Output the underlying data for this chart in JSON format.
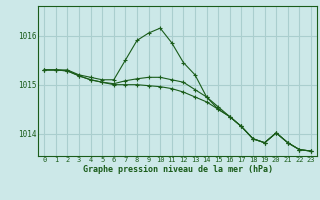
{
  "background_color": "#cce8e8",
  "grid_color": "#aacece",
  "line_color": "#1a5c1a",
  "title": "Graphe pression niveau de la mer (hPa)",
  "xlabel_hours": [
    0,
    1,
    2,
    3,
    4,
    5,
    6,
    7,
    8,
    9,
    10,
    11,
    12,
    13,
    14,
    15,
    16,
    17,
    18,
    19,
    20,
    21,
    22,
    23
  ],
  "yticks": [
    1014,
    1015,
    1016
  ],
  "ylim": [
    1013.55,
    1016.6
  ],
  "xlim": [
    -0.5,
    23.5
  ],
  "series": [
    [
      1015.3,
      1015.3,
      1015.3,
      1015.2,
      1015.15,
      1015.1,
      1015.1,
      1015.5,
      1015.9,
      1016.05,
      1016.15,
      1015.85,
      1015.45,
      1015.2,
      1014.75,
      1014.5,
      1014.35,
      1014.15,
      1013.9,
      1013.82,
      1014.02,
      1013.82,
      1013.68,
      1013.65
    ],
    [
      1015.3,
      1015.3,
      1015.28,
      1015.18,
      1015.1,
      1015.05,
      1015.02,
      1015.08,
      1015.12,
      1015.15,
      1015.15,
      1015.1,
      1015.05,
      1014.9,
      1014.75,
      1014.55,
      1014.35,
      1014.15,
      1013.9,
      1013.82,
      1014.02,
      1013.82,
      1013.68,
      1013.65
    ],
    [
      1015.3,
      1015.3,
      1015.28,
      1015.18,
      1015.1,
      1015.05,
      1015.0,
      1015.0,
      1015.0,
      1014.98,
      1014.96,
      1014.92,
      1014.85,
      1014.75,
      1014.65,
      1014.5,
      1014.35,
      1014.15,
      1013.9,
      1013.82,
      1014.02,
      1013.82,
      1013.68,
      1013.65
    ]
  ]
}
